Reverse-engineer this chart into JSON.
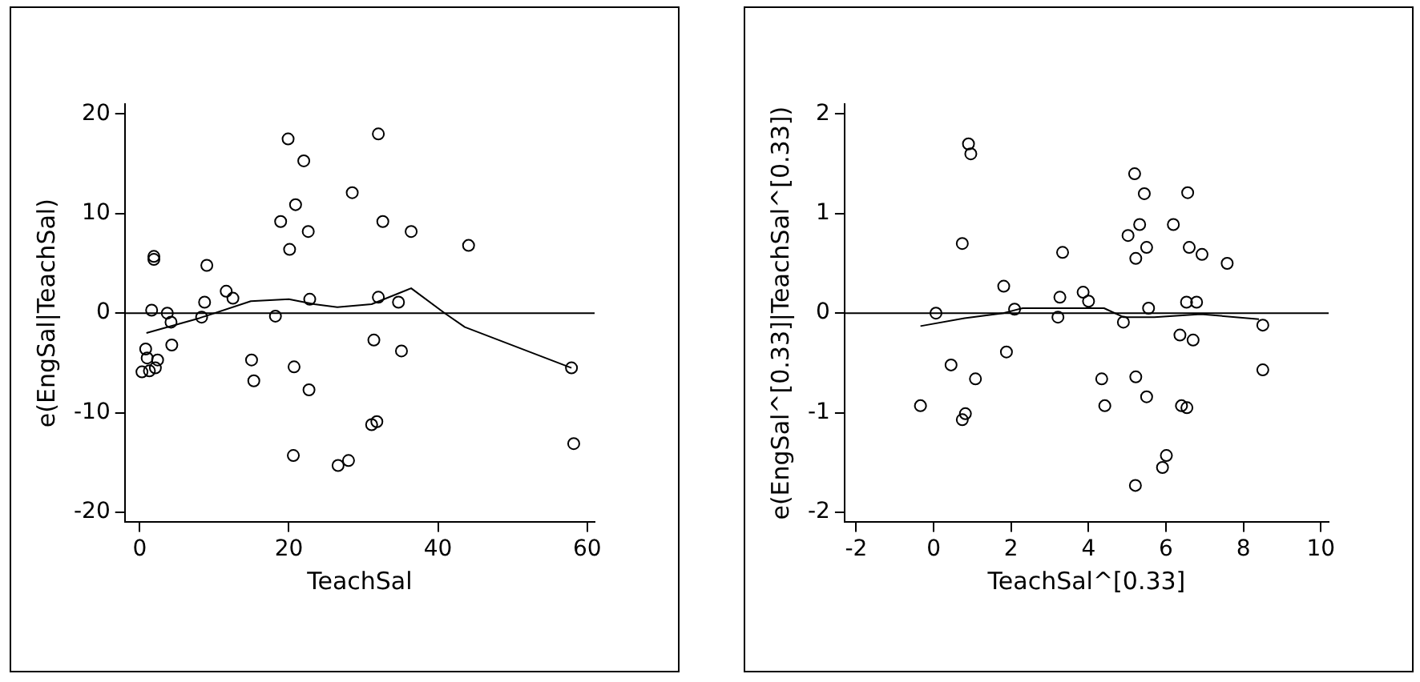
{
  "chart_data": [
    {
      "type": "scatter",
      "xlabel": "TeachSal",
      "ylabel": "e(EngSal|TeachSal)",
      "xlim": [
        -2,
        61
      ],
      "ylim": [
        -21,
        21
      ],
      "xticks": [
        0,
        20,
        40,
        60
      ],
      "yticks": [
        -20,
        -10,
        0,
        10,
        20
      ],
      "grid": false,
      "legend": false,
      "marker": "circle",
      "ref_lines": [
        {
          "axis": "y",
          "value": 0,
          "color": "#000000"
        }
      ],
      "series": [
        {
          "color": "#000000",
          "x": [
            1.6,
            1.9,
            1.9,
            3.7,
            4.2,
            8.3,
            8.7,
            9.0,
            11.6,
            12.5,
            18.2,
            18.9,
            19.9,
            20.1,
            20.9,
            22.0,
            22.6,
            22.8,
            28.5,
            32.0,
            32.0,
            32.6,
            34.7,
            36.4,
            44.1,
            0.3,
            0.8,
            1.0,
            1.3,
            2.1,
            2.4,
            4.3,
            15.0,
            15.3,
            20.7,
            20.6,
            22.7,
            26.6,
            28.0,
            31.4,
            31.1,
            31.8,
            35.1,
            57.9,
            58.2
          ],
          "values": [
            0.3,
            5.7,
            5.4,
            0,
            -0.9,
            -0.4,
            1.1,
            4.8,
            2.2,
            1.5,
            -0.3,
            9.2,
            17.5,
            6.4,
            10.9,
            15.3,
            8.2,
            1.4,
            12.1,
            18.0,
            1.6,
            9.2,
            1.1,
            8.2,
            6.8,
            -5.9,
            -3.6,
            -4.5,
            -5.8,
            -5.5,
            -4.7,
            -3.2,
            -4.7,
            -6.8,
            -5.4,
            -14.3,
            -7.7,
            -15.3,
            -14.8,
            -2.7,
            -11.2,
            -10.9,
            -3.8,
            -5.5,
            -13.1
          ]
        },
        {
          "type": "line",
          "color": "#000000",
          "marker": "none",
          "x": [
            0.9,
            8,
            14.9,
            20,
            23.4,
            26.5,
            31.1,
            36.4,
            40.9,
            43.6,
            57.9
          ],
          "values": [
            -2.0,
            -0.5,
            1.2,
            1.4,
            0.9,
            0.6,
            0.9,
            2.5,
            0,
            -1.4,
            -5.5
          ]
        }
      ]
    },
    {
      "type": "scatter",
      "xlabel": "TeachSal^[0.33]",
      "ylabel": "e(EngSal^[0.33]|TeachSal^[0.33])",
      "xlim": [
        -2.3,
        10.2
      ],
      "ylim": [
        -2.1,
        2.1
      ],
      "xticks": [
        -2,
        0,
        2,
        4,
        6,
        8,
        10
      ],
      "yticks": [
        -2,
        -1,
        0,
        1,
        2
      ],
      "grid": false,
      "legend": false,
      "marker": "circle",
      "ref_lines": [
        {
          "axis": "y",
          "value": 0,
          "color": "#000000"
        }
      ],
      "series": [
        {
          "color": "#000000",
          "x": [
            0.06,
            0.9,
            0.96,
            0.74,
            1.81,
            2.09,
            3.33,
            3.26,
            3.86,
            4.0,
            5.19,
            5.44,
            5.02,
            5.32,
            5.5,
            5.22,
            5.55,
            6.56,
            6.19,
            6.6,
            6.93,
            7.58,
            6.53,
            6.79,
            8.5,
            3.21,
            4.9,
            6.36,
            6.7,
            8.5,
            1.88,
            0.45,
            1.08,
            -0.34,
            0.82,
            0.74,
            4.34,
            4.42,
            5.22,
            5.5,
            6.4,
            6.54,
            6.01,
            5.91,
            5.21
          ],
          "values": [
            0.0,
            1.7,
            1.6,
            0.7,
            0.27,
            0.04,
            0.61,
            0.16,
            0.21,
            0.12,
            1.4,
            1.2,
            0.78,
            0.89,
            0.66,
            0.55,
            0.05,
            1.21,
            0.89,
            0.66,
            0.59,
            0.5,
            0.11,
            0.11,
            -0.12,
            -0.04,
            -0.09,
            -0.22,
            -0.27,
            -0.57,
            -0.39,
            -0.52,
            -0.66,
            -0.93,
            -1.01,
            -1.07,
            -0.66,
            -0.93,
            -0.64,
            -0.84,
            -0.93,
            -0.95,
            -1.43,
            -1.55,
            -1.73
          ]
        },
        {
          "type": "line",
          "color": "#000000",
          "marker": "none",
          "x": [
            -0.34,
            0.8,
            1.8,
            2.3,
            4.4,
            4.9,
            5.7,
            6.9,
            8.4
          ],
          "values": [
            -0.13,
            -0.05,
            0.0,
            0.05,
            0.05,
            -0.04,
            -0.04,
            -0.01,
            -0.06
          ]
        }
      ]
    }
  ]
}
